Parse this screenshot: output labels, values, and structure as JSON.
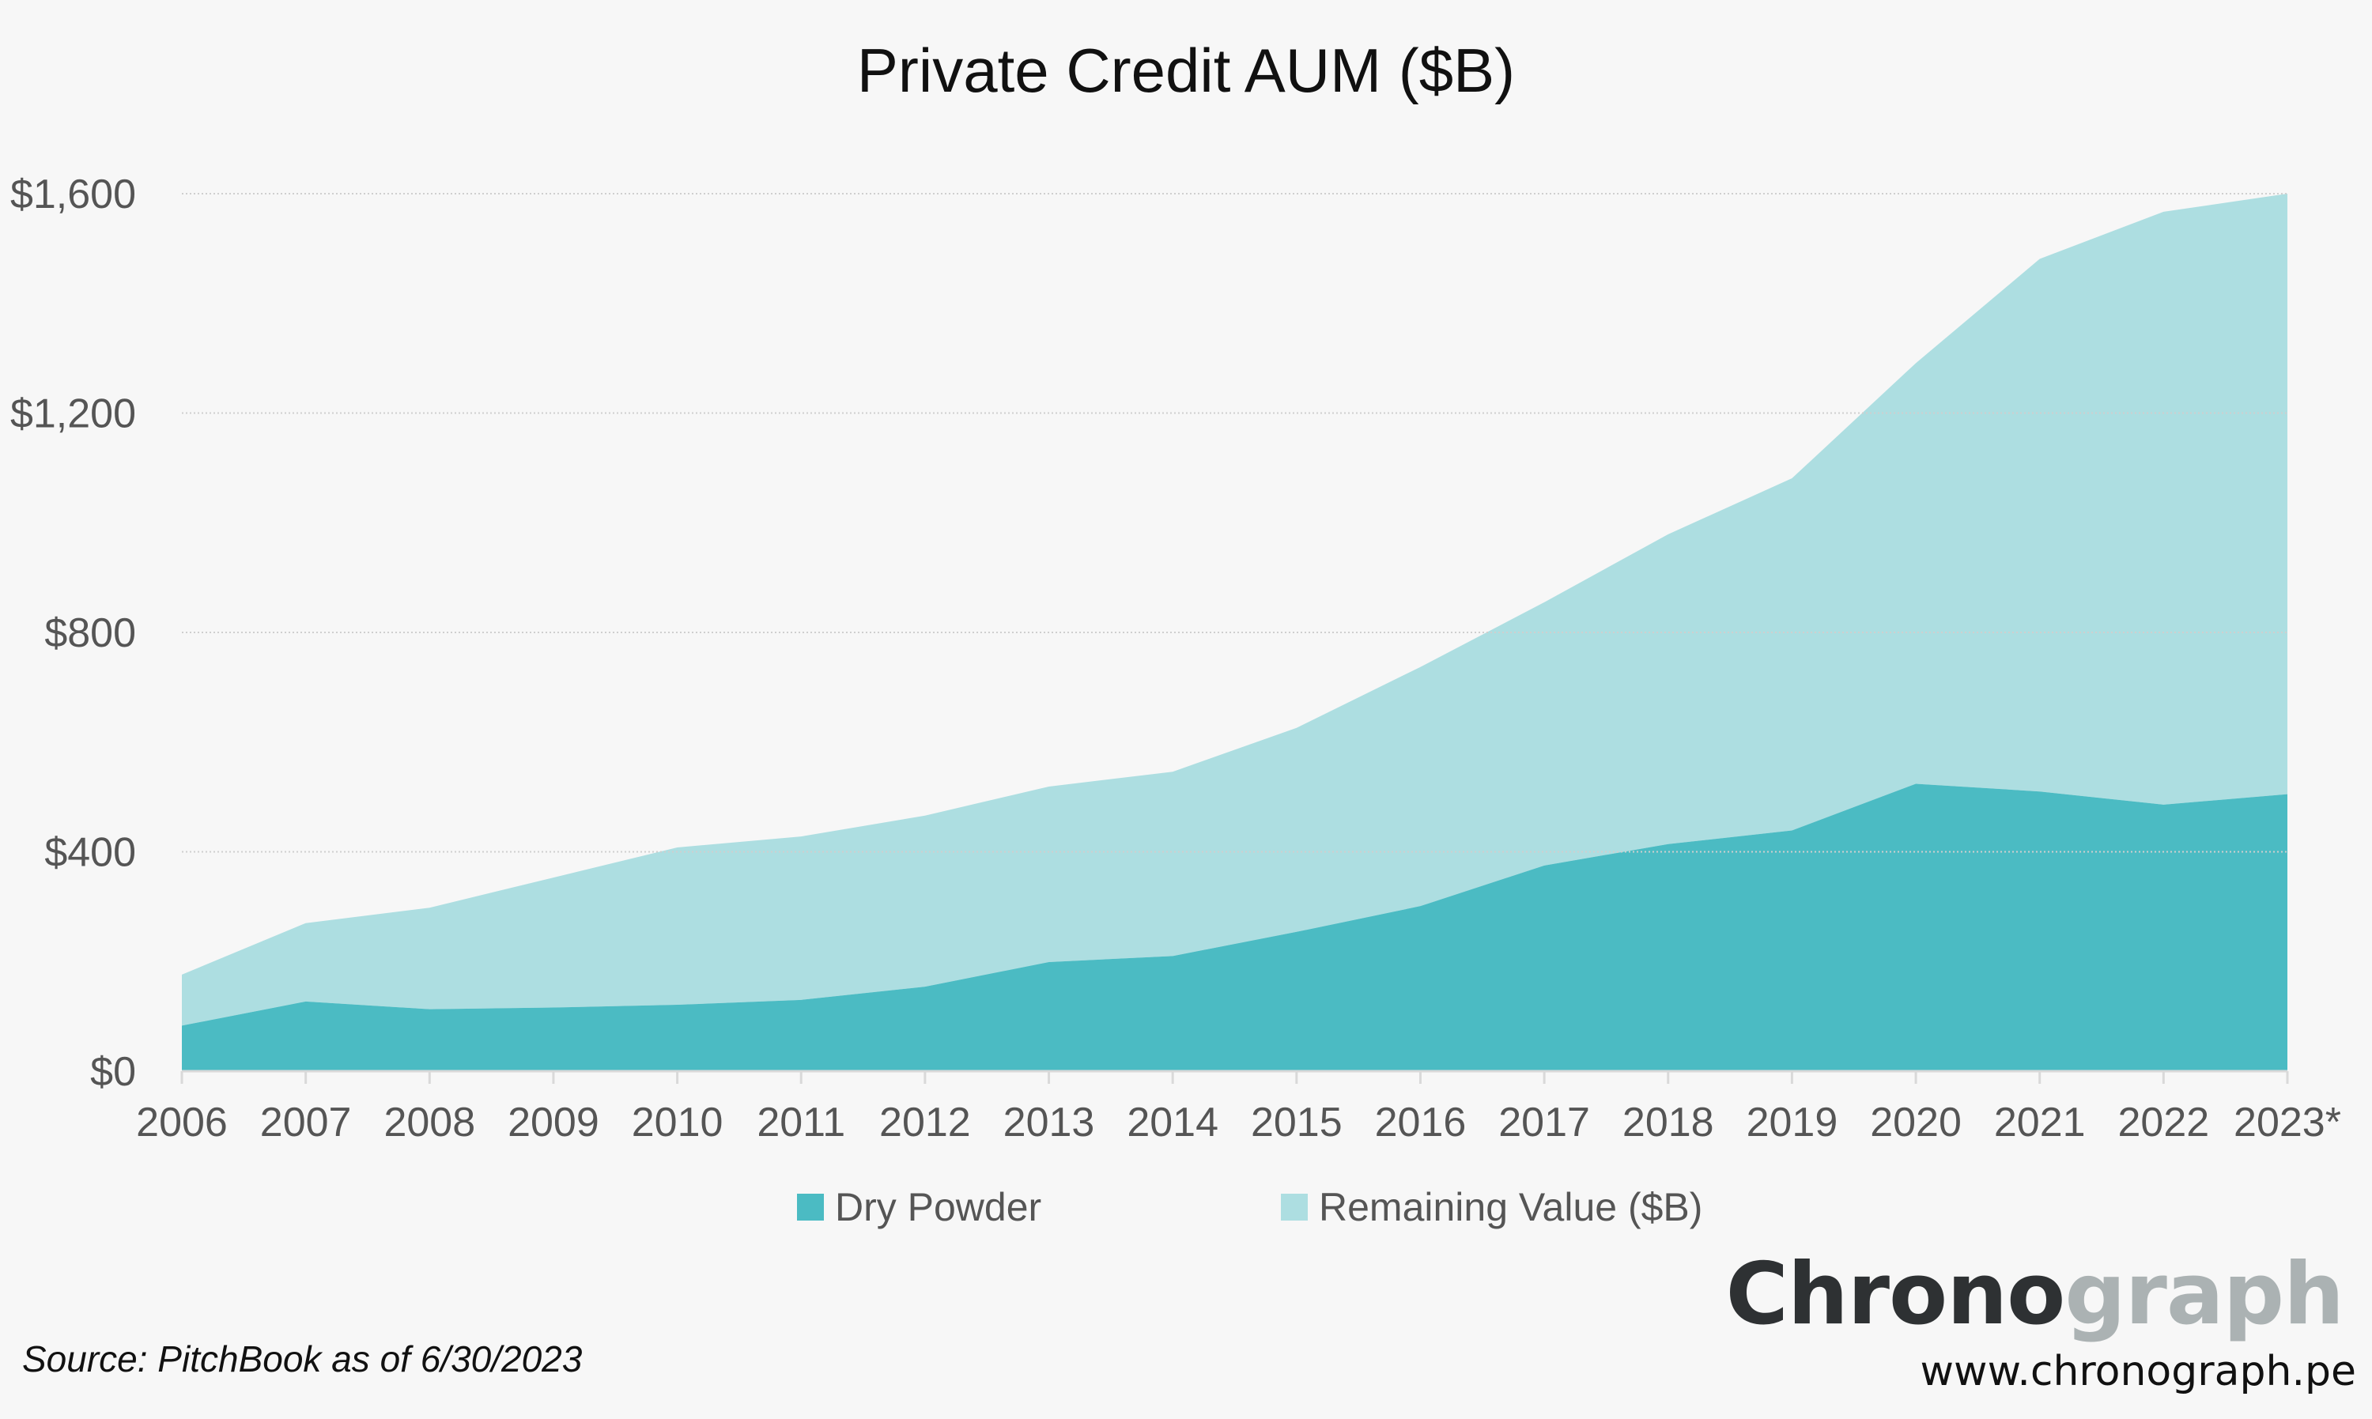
{
  "chart_data": {
    "type": "area",
    "stacked": true,
    "title": "Private Credit AUM ($B)",
    "xlabel": "",
    "ylabel": "",
    "categories": [
      "2006",
      "2007",
      "2008",
      "2009",
      "2010",
      "2011",
      "2012",
      "2013",
      "2014",
      "2015",
      "2016",
      "2017",
      "2018",
      "2019",
      "2020",
      "2021",
      "2022",
      "2023*"
    ],
    "series": [
      {
        "name": "Dry Powder",
        "color": "#4bbbc3",
        "values": [
          83,
          127,
          113,
          116,
          121,
          130,
          154,
          199,
          210,
          254,
          301,
          375,
          414,
          439,
          524,
          510,
          486,
          505
        ]
      },
      {
        "name": "Remaining Value ($B)",
        "color": "#addee1",
        "values": [
          93,
          143,
          185,
          237,
          287,
          298,
          312,
          320,
          336,
          372,
          436,
          480,
          565,
          642,
          767,
          971,
          1081,
          1095
        ]
      }
    ],
    "totals": [
      176,
      270,
      298,
      353,
      408,
      428,
      466,
      519,
      546,
      626,
      737,
      855,
      979,
      1081,
      1291,
      1481,
      1567,
      1600
    ],
    "ylim": [
      0,
      1600
    ],
    "yticks": [
      0,
      400,
      800,
      1200,
      1600
    ],
    "ytick_labels": [
      "$0",
      "$400",
      "$800",
      "$1,200",
      "$1,600"
    ],
    "grid": true,
    "legend_placement": "bottom-center"
  },
  "source": "Source: PitchBook as of 6/30/2023",
  "brand": {
    "logo_dark": "Chrono",
    "logo_light": "graph",
    "url": "www.chronograph.pe"
  }
}
